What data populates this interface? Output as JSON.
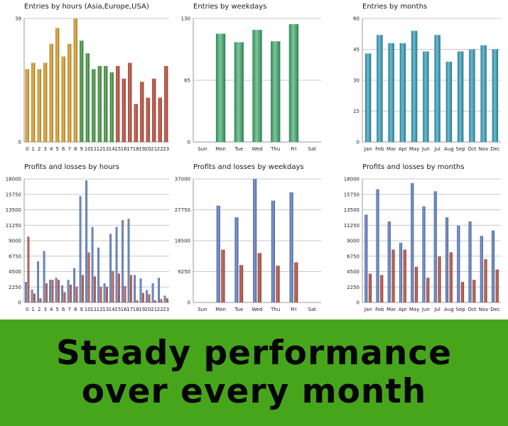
{
  "colors": {
    "hours_asia": "#e0a020",
    "hours_europe": "#3e9a3a",
    "hours_usa": "#c24632",
    "weekdays": "#4cb67a",
    "months": "#39a7c4",
    "profit": "#5b7fc9",
    "loss": "#b94a3a",
    "banner_bg": "#47a51c"
  },
  "banner": {
    "line1": "Steady performance",
    "line2": "over every month"
  },
  "chart_data": [
    {
      "id": "entries-hours",
      "type": "bar",
      "title": "Entries by hours (Asia,Europe,USA)",
      "categories": [
        "0",
        "1",
        "2",
        "3",
        "4",
        "5",
        "6",
        "7",
        "8",
        "9",
        "10",
        "11",
        "12",
        "13",
        "14",
        "15",
        "16",
        "17",
        "18",
        "19",
        "20",
        "21",
        "22",
        "23"
      ],
      "values": [
        23,
        25,
        23,
        25,
        31,
        36,
        27,
        31,
        39,
        32,
        28,
        23,
        24,
        24,
        22,
        24,
        20,
        25,
        12,
        19,
        14,
        20,
        14,
        24
      ],
      "color_groups": [
        {
          "from": 0,
          "to": 8,
          "color_key": "hours_asia"
        },
        {
          "from": 9,
          "to": 14,
          "color_key": "hours_europe"
        },
        {
          "from": 15,
          "to": 23,
          "color_key": "hours_usa"
        }
      ],
      "ylim": [
        0,
        39
      ],
      "yticks": [
        "0",
        "39"
      ]
    },
    {
      "id": "entries-weekdays",
      "type": "bar",
      "title": "Entries by weekdays",
      "categories": [
        "Sun",
        "Mon",
        "Tue",
        "Wed",
        "Thu",
        "Fri",
        "Sat"
      ],
      "values": [
        0,
        114,
        105,
        118,
        106,
        124,
        0
      ],
      "color_key": "weekdays",
      "ylim": [
        0,
        130
      ],
      "yticks": [
        "0",
        "65",
        "130"
      ]
    },
    {
      "id": "entries-months",
      "type": "bar",
      "title": "Entries by months",
      "categories": [
        "Jan",
        "Feb",
        "Mar",
        "Apr",
        "May",
        "Jun",
        "Jul",
        "Aug",
        "Sep",
        "Oct",
        "Nov",
        "Dec"
      ],
      "values": [
        43,
        52,
        48,
        48,
        54,
        44,
        52,
        39,
        44,
        45,
        47,
        45
      ],
      "color_key": "months",
      "ylim": [
        0,
        60
      ],
      "yticks": [
        "0",
        "15",
        "30",
        "45",
        "60"
      ]
    },
    {
      "id": "pl-hours",
      "type": "bar",
      "title": "Profits and losses by hours",
      "categories": [
        "0",
        "1",
        "2",
        "3",
        "4",
        "5",
        "6",
        "7",
        "8",
        "9",
        "10",
        "11",
        "12",
        "13",
        "14",
        "15",
        "16",
        "17",
        "18",
        "19",
        "20",
        "21",
        "22",
        "23"
      ],
      "series": [
        {
          "name": "Profits",
          "color_key": "profit",
          "values": [
            3000,
            1900,
            6000,
            7500,
            3300,
            3600,
            2500,
            3300,
            5000,
            15500,
            17800,
            11000,
            8000,
            2800,
            10000,
            11000,
            12000,
            12200,
            4000,
            3500,
            1800,
            2800,
            3600,
            1000
          ]
        },
        {
          "name": "Losses",
          "color_key": "loss",
          "values": [
            9600,
            1300,
            600,
            2800,
            3300,
            3300,
            1500,
            2600,
            2300,
            4000,
            7300,
            3800,
            2300,
            2300,
            4600,
            4200,
            2400,
            4000,
            300,
            1400,
            1200,
            300,
            500,
            600
          ]
        }
      ],
      "ylim": [
        0,
        18000
      ],
      "yticks": [
        "0",
        "2250",
        "4500",
        "6750",
        "9000",
        "11250",
        "13500",
        "15750",
        "18000"
      ]
    },
    {
      "id": "pl-weekdays",
      "type": "bar",
      "title": "Profits and losses by weekdays",
      "categories": [
        "Sun",
        "Mon",
        "Tue",
        "Wed",
        "Thu",
        "Fri",
        "Sat"
      ],
      "series": [
        {
          "name": "Profits",
          "color_key": "profit",
          "values": [
            0,
            29000,
            25500,
            37000,
            30500,
            33000,
            0
          ]
        },
        {
          "name": "Losses",
          "color_key": "loss",
          "values": [
            0,
            15800,
            11200,
            14800,
            11000,
            12000,
            0
          ]
        }
      ],
      "ylim": [
        0,
        37000
      ],
      "yticks": [
        "0",
        "9250",
        "18500",
        "27750",
        "37000"
      ]
    },
    {
      "id": "pl-months",
      "type": "bar",
      "title": "Profits and losses by months",
      "categories": [
        "Jan",
        "Feb",
        "Mar",
        "Apr",
        "May",
        "Jun",
        "Jul",
        "Aug",
        "Sep",
        "Oct",
        "Nov",
        "Dec"
      ],
      "series": [
        {
          "name": "Profits",
          "color_key": "profit",
          "values": [
            12800,
            16500,
            11800,
            8700,
            17400,
            14000,
            16200,
            12400,
            11200,
            11800,
            9700,
            10500
          ]
        },
        {
          "name": "Losses",
          "color_key": "loss",
          "values": [
            4200,
            4000,
            7700,
            7700,
            5200,
            3600,
            6700,
            7300,
            3000,
            3300,
            6300,
            4800
          ]
        }
      ],
      "ylim": [
        0,
        18000
      ],
      "yticks": [
        "0",
        "2250",
        "4500",
        "6750",
        "9000",
        "11250",
        "13500",
        "15750",
        "18000"
      ]
    }
  ]
}
